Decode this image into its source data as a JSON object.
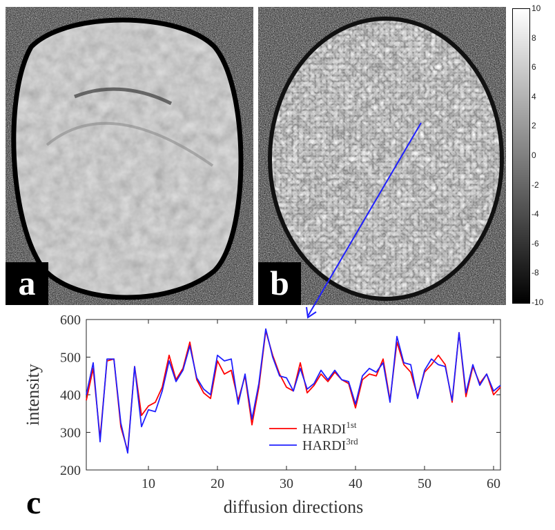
{
  "panels": {
    "a_label": "a",
    "b_label": "b",
    "c_label": "c"
  },
  "colorbar": {
    "ticks": [
      "10",
      "8",
      "6",
      "4",
      "2",
      "0",
      "-2",
      "-4",
      "-6",
      "-8",
      "-10"
    ],
    "range": [
      -10,
      10
    ]
  },
  "colors": {
    "series1": "#ff0000",
    "series2": "#1f1fff",
    "arrow": "#1f1fff"
  },
  "chart_data": {
    "type": "line",
    "xlabel": "diffusion directions",
    "ylabel": "intensity",
    "xlim": [
      1,
      61
    ],
    "ylim": [
      200,
      600
    ],
    "xticks": [
      10,
      20,
      30,
      40,
      50,
      60
    ],
    "yticks": [
      200,
      300,
      400,
      500,
      600
    ],
    "x": [
      1,
      2,
      3,
      4,
      5,
      6,
      7,
      8,
      9,
      10,
      11,
      12,
      13,
      14,
      15,
      16,
      17,
      18,
      19,
      20,
      21,
      22,
      23,
      24,
      25,
      26,
      27,
      28,
      29,
      30,
      31,
      32,
      33,
      34,
      35,
      36,
      37,
      38,
      39,
      40,
      41,
      42,
      43,
      44,
      45,
      46,
      47,
      48,
      49,
      50,
      51,
      52,
      53,
      54,
      55,
      56,
      57,
      58,
      59,
      60,
      61
    ],
    "series": [
      {
        "name": "HARDI",
        "superscript": "1st",
        "color": "#ff0000",
        "values": [
          385,
          470,
          285,
          490,
          495,
          315,
          250,
          475,
          345,
          370,
          380,
          420,
          505,
          440,
          470,
          540,
          440,
          405,
          390,
          490,
          455,
          465,
          385,
          450,
          320,
          420,
          570,
          505,
          455,
          420,
          410,
          485,
          405,
          425,
          455,
          435,
          460,
          440,
          430,
          365,
          440,
          455,
          450,
          495,
          385,
          540,
          480,
          460,
          395,
          460,
          480,
          505,
          480,
          380,
          565,
          395,
          475,
          430,
          455,
          400,
          420
        ]
      },
      {
        "name": "HARDI",
        "superscript": "3rd",
        "color": "#1f1fff",
        "values": [
          400,
          485,
          275,
          495,
          495,
          325,
          245,
          475,
          315,
          360,
          355,
          410,
          490,
          435,
          465,
          530,
          445,
          415,
          400,
          505,
          490,
          495,
          375,
          455,
          335,
          430,
          575,
          500,
          450,
          445,
          410,
          470,
          415,
          430,
          465,
          440,
          465,
          440,
          435,
          375,
          450,
          470,
          460,
          485,
          380,
          555,
          485,
          480,
          390,
          465,
          495,
          480,
          475,
          385,
          565,
          405,
          480,
          425,
          455,
          410,
          425
        ]
      }
    ]
  }
}
